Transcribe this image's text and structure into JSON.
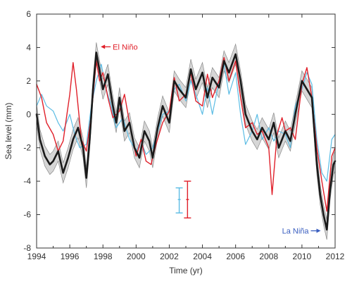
{
  "chart_data": {
    "type": "line",
    "title": "",
    "xlabel": "Time (yr)",
    "ylabel": "Sea level (mm)",
    "xlim": [
      1994,
      2012
    ],
    "ylim": [
      -8,
      6
    ],
    "xticks": [
      1994,
      1996,
      1998,
      2000,
      2002,
      2004,
      2006,
      2008,
      2010,
      2012
    ],
    "yticks": [
      -8,
      -6,
      -4,
      -2,
      0,
      2,
      4,
      6
    ],
    "xtick_labels": [
      "1994",
      "1996",
      "1998",
      "2000",
      "2002",
      "2004",
      "2006",
      "2008",
      "2010",
      "2012"
    ],
    "ytick_labels": [
      "-8",
      "-6",
      "-4",
      "-2",
      "0",
      "2",
      "4",
      "6"
    ],
    "grid": false,
    "colors": {
      "black_series": "#1a1a1a",
      "red_series": "#e0202a",
      "blue_series": "#5bbce4",
      "band": "#c8c8c8",
      "band_edge": "#8a8a8a",
      "annotation_blue": "#3b5fc0"
    },
    "series": [
      {
        "color_key": "black_series",
        "band_halfwidth": 0.6,
        "x": [
          1994.0,
          1994.2,
          1994.5,
          1994.8,
          1995.0,
          1995.3,
          1995.6,
          1995.9,
          1996.2,
          1996.5,
          1996.8,
          1997.0,
          1997.2,
          1997.4,
          1997.6,
          1997.8,
          1998.0,
          1998.3,
          1998.6,
          1998.8,
          1999.0,
          1999.3,
          1999.6,
          1999.9,
          2000.2,
          2000.5,
          2000.8,
          2001.0,
          2001.3,
          2001.6,
          2002.0,
          2002.3,
          2002.6,
          2003.0,
          2003.3,
          2003.6,
          2004.0,
          2004.3,
          2004.6,
          2005.0,
          2005.3,
          2005.6,
          2006.0,
          2006.3,
          2006.6,
          2007.0,
          2007.3,
          2007.6,
          2008.0,
          2008.3,
          2008.6,
          2009.0,
          2009.3,
          2009.6,
          2010.0,
          2010.3,
          2010.6,
          2010.9,
          2011.1,
          2011.3,
          2011.5,
          2011.7,
          2011.9,
          2012.0
        ],
        "y": [
          0.0,
          -1.5,
          -2.5,
          -3.0,
          -2.8,
          -2.2,
          -3.5,
          -2.6,
          -1.5,
          -0.8,
          -2.0,
          -3.8,
          -1.5,
          1.5,
          3.7,
          2.6,
          1.5,
          2.4,
          0.5,
          -0.5,
          1.0,
          -1.0,
          -0.5,
          -2.0,
          -2.6,
          -1.0,
          -1.6,
          -2.6,
          -0.8,
          0.5,
          -0.5,
          2.0,
          1.5,
          1.0,
          2.7,
          1.5,
          2.5,
          1.0,
          2.2,
          1.6,
          3.2,
          2.5,
          3.6,
          2.0,
          0.0,
          -1.0,
          -1.5,
          -0.8,
          -1.5,
          -0.5,
          -2.0,
          -1.0,
          -1.6,
          0.0,
          2.0,
          1.5,
          1.0,
          -3.0,
          -4.8,
          -6.0,
          -6.9,
          -4.5,
          -3.0,
          -2.8
        ]
      },
      {
        "color_key": "red_series",
        "x": [
          1994.0,
          1994.3,
          1994.6,
          1995.0,
          1995.3,
          1995.6,
          1996.0,
          1996.2,
          1996.4,
          1996.7,
          1997.0,
          1997.3,
          1997.6,
          1997.8,
          1998.0,
          1998.3,
          1998.6,
          1999.0,
          1999.3,
          1999.6,
          2000.0,
          2000.3,
          2000.6,
          2000.9,
          2001.2,
          2001.6,
          2002.0,
          2002.3,
          2002.6,
          2003.0,
          2003.3,
          2003.6,
          2004.0,
          2004.3,
          2004.6,
          2005.0,
          2005.3,
          2005.6,
          2006.0,
          2006.3,
          2006.6,
          2007.0,
          2007.3,
          2007.6,
          2008.0,
          2008.2,
          2008.5,
          2008.8,
          2009.0,
          2009.3,
          2009.6,
          2010.0,
          2010.3,
          2010.6,
          2010.9,
          2011.2,
          2011.5,
          2011.8,
          2012.0
        ],
        "y": [
          1.8,
          1.0,
          -0.5,
          -1.2,
          -2.2,
          -1.6,
          1.2,
          3.1,
          1.5,
          -1.5,
          -2.2,
          0.0,
          3.2,
          2.0,
          2.5,
          1.0,
          -0.2,
          0.2,
          1.2,
          -0.5,
          -2.5,
          -1.5,
          -2.8,
          -3.0,
          -1.8,
          -0.5,
          0.2,
          2.2,
          0.8,
          1.2,
          2.5,
          0.8,
          0.5,
          2.4,
          1.0,
          2.0,
          3.4,
          2.0,
          3.2,
          1.0,
          -0.8,
          -0.5,
          -1.2,
          -1.0,
          -2.0,
          -4.8,
          -1.2,
          -0.2,
          -1.0,
          -0.8,
          -1.5,
          1.8,
          2.8,
          1.0,
          -2.0,
          -4.0,
          -5.8,
          -2.5,
          -2.0
        ]
      },
      {
        "color_key": "blue_series",
        "x": [
          1994.0,
          1994.3,
          1994.6,
          1995.0,
          1995.3,
          1995.6,
          1996.0,
          1996.3,
          1996.6,
          1997.0,
          1997.3,
          1997.6,
          1997.9,
          1998.2,
          1998.5,
          1998.8,
          1999.2,
          1999.6,
          2000.0,
          2000.3,
          2000.6,
          2001.0,
          2001.3,
          2001.6,
          2002.0,
          2002.3,
          2002.6,
          2003.0,
          2003.3,
          2003.6,
          2004.0,
          2004.3,
          2004.6,
          2005.0,
          2005.3,
          2005.6,
          2006.0,
          2006.3,
          2006.6,
          2007.0,
          2007.3,
          2007.6,
          2008.0,
          2008.3,
          2008.6,
          2009.0,
          2009.3,
          2009.6,
          2010.0,
          2010.3,
          2010.6,
          2010.9,
          2011.2,
          2011.5,
          2011.8,
          2012.0
        ],
        "y": [
          0.5,
          1.2,
          0.5,
          0.2,
          -0.5,
          -1.0,
          0.0,
          -1.2,
          -2.0,
          -1.8,
          0.5,
          2.0,
          3.0,
          1.5,
          0.5,
          -0.8,
          -0.2,
          -1.5,
          -2.2,
          -1.6,
          -2.4,
          -2.0,
          -1.0,
          0.0,
          0.2,
          1.5,
          1.8,
          0.8,
          2.0,
          1.2,
          0.0,
          1.6,
          0.0,
          2.0,
          3.0,
          1.2,
          2.5,
          0.0,
          -1.8,
          -1.0,
          0.0,
          -1.5,
          -0.8,
          -1.6,
          -1.0,
          -1.2,
          -2.0,
          0.5,
          1.5,
          2.5,
          1.8,
          -1.5,
          -3.5,
          -4.0,
          -1.5,
          -1.2
        ]
      }
    ],
    "error_bars": [
      {
        "color_key": "blue_series",
        "x": 2002.6,
        "center": -5.1,
        "low": -5.9,
        "high": -4.4
      },
      {
        "color_key": "red_series",
        "x": 2003.1,
        "center": -5.1,
        "low": -6.2,
        "high": -4.0
      }
    ],
    "annotations": [
      {
        "text": "El Niño",
        "color_key": "red_series",
        "arrow_to_x": 1997.7,
        "arrow_to_y": 4.0
      },
      {
        "text": "La Niña",
        "color_key": "annotation_blue",
        "arrow_to_x": 2011.3,
        "arrow_to_y": -6.8
      }
    ]
  }
}
